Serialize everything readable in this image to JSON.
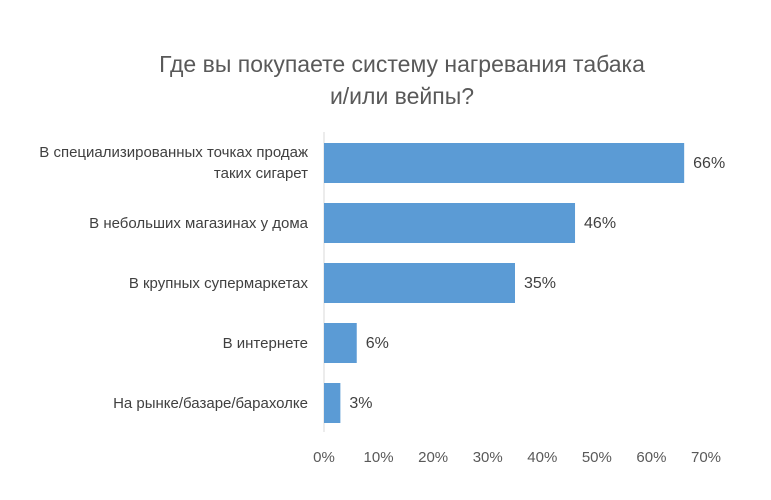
{
  "chart_data": {
    "type": "bar",
    "orientation": "horizontal",
    "title": [
      "Где вы покупаете систему нагревания табака",
      "и/или вейпы?"
    ],
    "categories": [
      "В специализированных точках продаж таких сигарет",
      "В небольших магазинах у дома",
      "В крупных супермаркетах",
      "В интернете",
      "На рынке/базаре/барахолке"
    ],
    "values": [
      66,
      46,
      35,
      6,
      3
    ],
    "value_labels": [
      "66%",
      "46%",
      "35%",
      "6%",
      "3%"
    ],
    "color": "#5b9bd5",
    "xlim": [
      0,
      70
    ],
    "xticks": [
      {
        "value": 0,
        "label": "0%"
      },
      {
        "value": 10,
        "label": "10%"
      },
      {
        "value": 20,
        "label": "20%"
      },
      {
        "value": 30,
        "label": "30%"
      },
      {
        "value": 40,
        "label": "40%"
      },
      {
        "value": 50,
        "label": "50%"
      },
      {
        "value": 60,
        "label": "60%"
      },
      {
        "value": 70,
        "label": "70%"
      }
    ],
    "grid": false
  }
}
